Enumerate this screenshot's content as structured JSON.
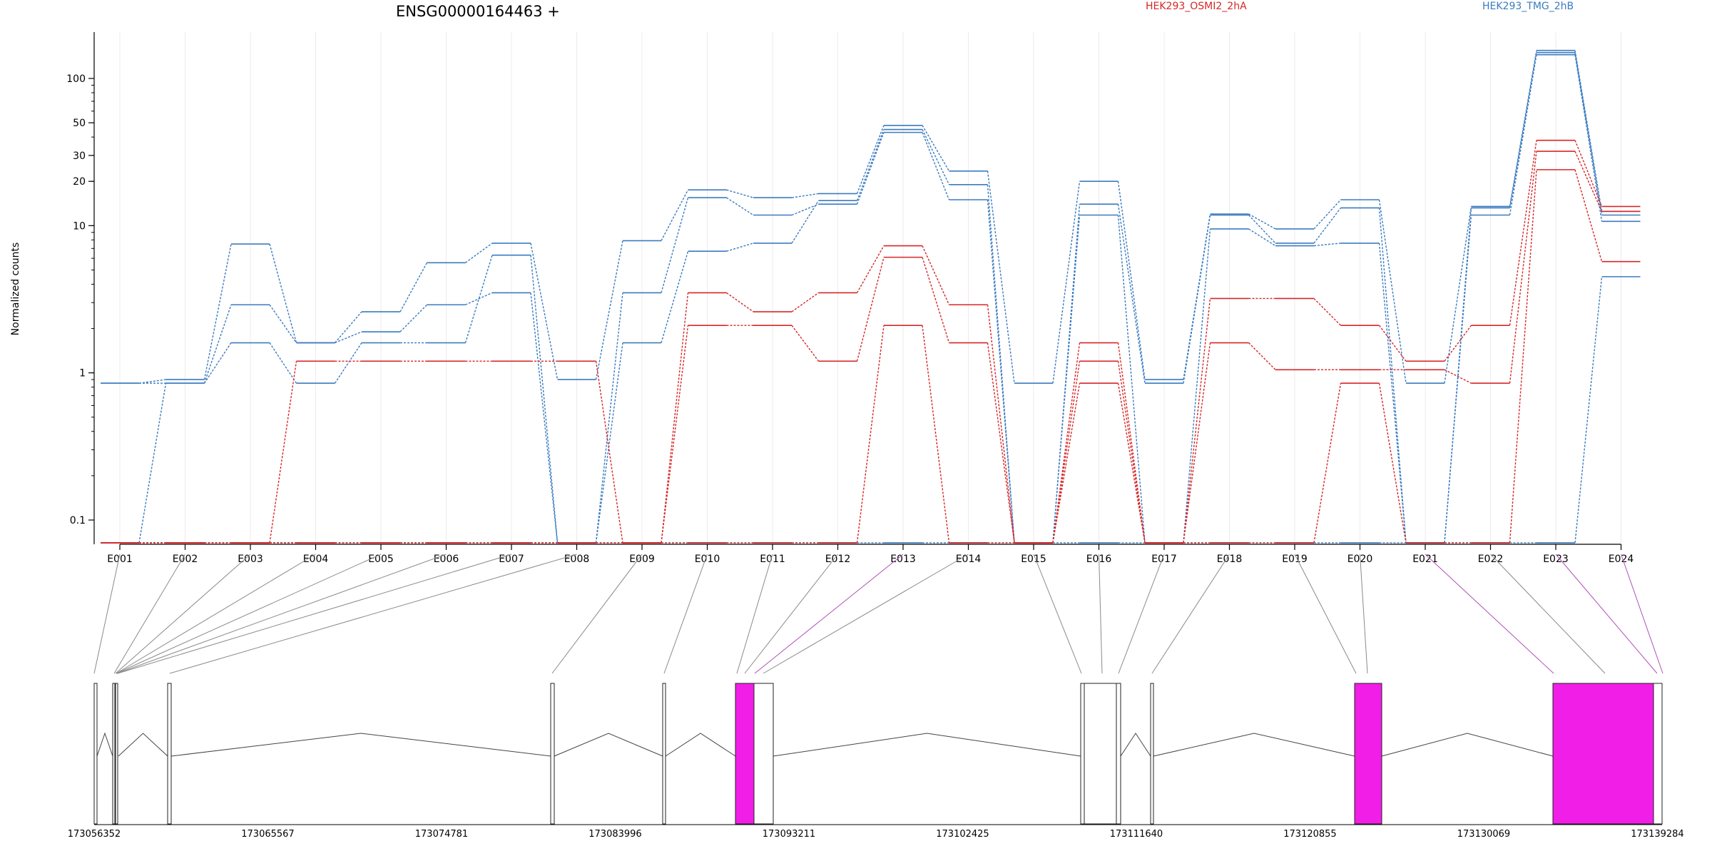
{
  "chart_data": {
    "type": "line",
    "title": "ENSG00000164463 +",
    "ylabel": "Normalized counts",
    "yscale": "log",
    "ylim": [
      0.07,
      180
    ],
    "ytick_labels": [
      "0.1",
      "1",
      "10",
      "20",
      "30",
      "50",
      "100"
    ],
    "ytick_values": [
      0.1,
      1,
      10,
      20,
      30,
      50,
      100
    ],
    "categories": [
      "E001",
      "E002",
      "E003",
      "E004",
      "E005",
      "E006",
      "E007",
      "E008",
      "E009",
      "E010",
      "E011",
      "E012",
      "E013",
      "E014",
      "E015",
      "E016",
      "E017",
      "E018",
      "E019",
      "E020",
      "E021",
      "E022",
      "E023",
      "E024"
    ],
    "legend": [
      {
        "label": "HEK293_OSMI2_2hA",
        "color": "#d62728"
      },
      {
        "label": "HEK293_TMG_2hB",
        "color": "#3b7bbf"
      }
    ],
    "series": [
      {
        "group": 0,
        "color": "#3b7bbf",
        "values": [
          0.85,
          0.9,
          7.5,
          1.6,
          2.6,
          5.6,
          7.6,
          0.9,
          7.9,
          17.5,
          15.5,
          16.5,
          48,
          23.5,
          0.85,
          20,
          0.9,
          12,
          9.5,
          15,
          0.85,
          13.5,
          155,
          12.5
        ]
      },
      {
        "group": 0,
        "color": "#3b7bbf",
        "values": [
          0.85,
          0.85,
          2.9,
          1.6,
          1.9,
          2.9,
          3.5,
          0.07,
          1.6,
          6.7,
          7.6,
          14.8,
          45,
          19,
          0.07,
          14,
          0.85,
          11.8,
          7.6,
          13.2,
          0.07,
          13.2,
          150,
          11.8
        ]
      },
      {
        "group": 0,
        "color": "#3b7bbf",
        "values": [
          0.07,
          0.85,
          1.6,
          0.85,
          1.6,
          1.6,
          6.3,
          0.07,
          3.5,
          15.5,
          11.8,
          14,
          43,
          15,
          0.07,
          11.8,
          0.07,
          9.5,
          7.3,
          7.6,
          0.07,
          11.8,
          145,
          10.7
        ]
      },
      {
        "group": 0,
        "color": "#3b7bbf",
        "values": [
          0.07,
          0.07,
          0.07,
          0.07,
          0.07,
          0.07,
          0.07,
          0.07,
          0.07,
          0.07,
          0.07,
          0.07,
          0.07,
          0.07,
          0.07,
          0.07,
          0.07,
          0.07,
          0.07,
          0.07,
          0.07,
          0.07,
          0.07,
          4.5
        ]
      },
      {
        "group": 1,
        "color": "#d62728",
        "values": [
          0.07,
          0.07,
          0.07,
          1.2,
          1.2,
          1.2,
          1.2,
          1.2,
          0.07,
          3.5,
          2.6,
          3.5,
          7.3,
          2.9,
          0.07,
          1.6,
          0.07,
          3.2,
          3.2,
          2.1,
          1.2,
          2.1,
          38,
          13.5
        ]
      },
      {
        "group": 1,
        "color": "#d62728",
        "values": [
          0.07,
          0.07,
          0.07,
          0.07,
          0.07,
          0.07,
          0.07,
          0.07,
          0.07,
          2.1,
          2.1,
          1.2,
          6.1,
          1.6,
          0.07,
          1.2,
          0.07,
          1.6,
          1.05,
          1.05,
          1.05,
          0.85,
          32,
          12.5
        ]
      },
      {
        "group": 1,
        "color": "#d62728",
        "values": [
          0.07,
          0.07,
          0.07,
          0.07,
          0.07,
          0.07,
          0.07,
          0.07,
          0.07,
          0.07,
          0.07,
          0.07,
          2.1,
          0.07,
          0.07,
          0.85,
          0.07,
          0.07,
          0.07,
          0.85,
          0.07,
          0.07,
          24,
          5.7
        ]
      }
    ],
    "genomic_coordinates": [
      "173056352",
      "173065567",
      "173074781",
      "173083996",
      "173093211",
      "173102425",
      "173111640",
      "173120855",
      "173130069",
      "173139284"
    ],
    "exon_highlight_color": "#f01ee6"
  }
}
